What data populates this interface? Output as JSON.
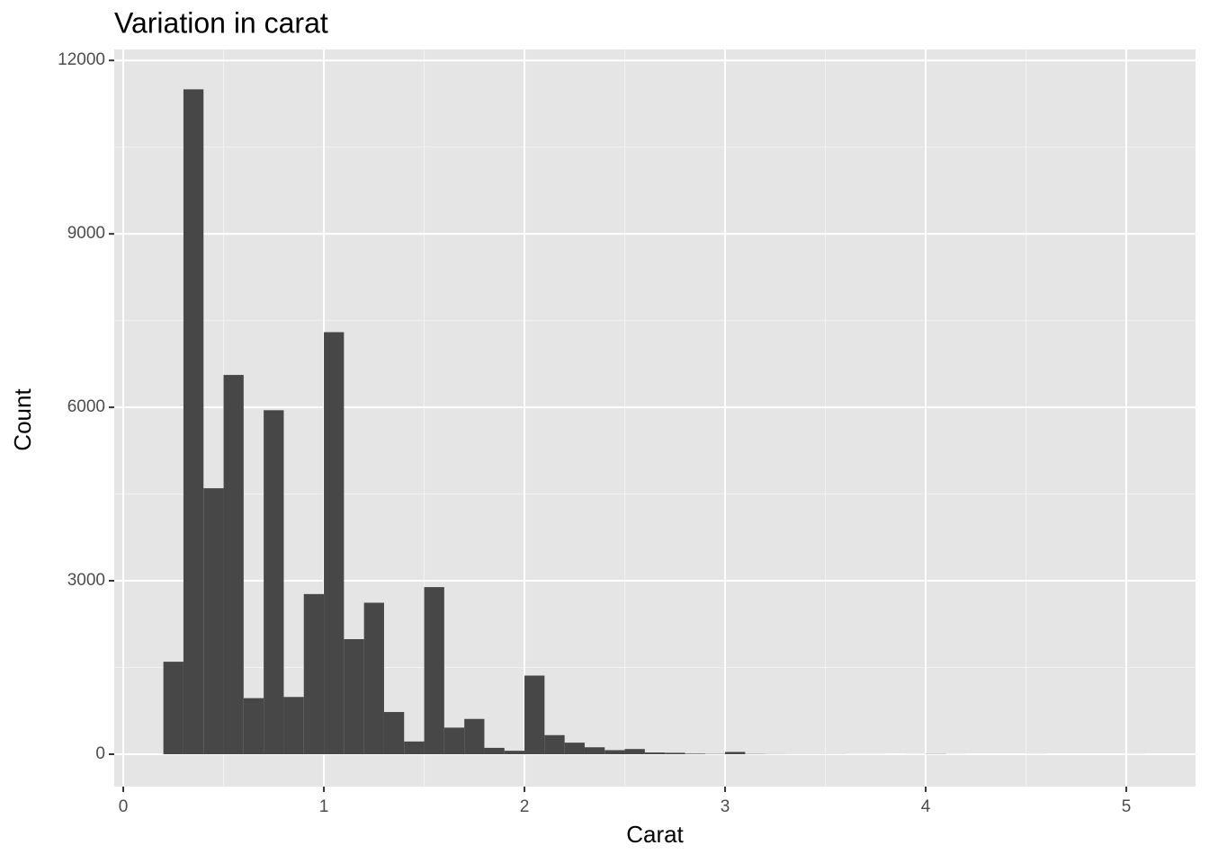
{
  "chart_data": {
    "type": "histogram",
    "title": "Variation in carat",
    "x_label": "Carat",
    "y_label": "Count",
    "bins": [
      0.2,
      0.3,
      0.4,
      0.5,
      0.6,
      0.7,
      0.8,
      0.9,
      1.0,
      1.1,
      1.2,
      1.3,
      1.4,
      1.5,
      1.6,
      1.7,
      1.8,
      1.9,
      2.0,
      2.1,
      2.2,
      2.3,
      2.4,
      2.5,
      2.6,
      2.7,
      2.8,
      2.9,
      3.0,
      3.1,
      3.2,
      3.3,
      3.4,
      3.5,
      3.6,
      3.7,
      3.8,
      3.9,
      4.0,
      4.1,
      4.2,
      4.3,
      4.4,
      4.5,
      4.6,
      4.7,
      4.8,
      4.9,
      5.0,
      5.1
    ],
    "values": [
      1600,
      11500,
      4600,
      6560,
      970,
      5950,
      990,
      2770,
      7300,
      1990,
      2620,
      730,
      220,
      2890,
      460,
      610,
      110,
      60,
      1360,
      330,
      200,
      120,
      70,
      90,
      30,
      25,
      10,
      5,
      40,
      5,
      3,
      2,
      2,
      2,
      1,
      1,
      0,
      1,
      4,
      1,
      0,
      0,
      0,
      1,
      0,
      0,
      0,
      0,
      1
    ],
    "color": "#474747",
    "xlim": [
      -0.045,
      5.345
    ],
    "xticks": [
      0,
      1,
      2,
      3,
      4,
      5
    ],
    "ylim": [
      -560,
      12190
    ],
    "yticks": [
      0,
      3000,
      6000,
      9000,
      12000
    ],
    "grid": true
  }
}
